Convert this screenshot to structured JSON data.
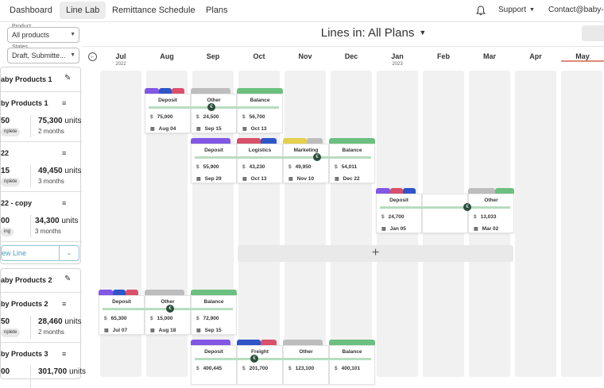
{
  "nav": {
    "tabs": [
      {
        "label": "Dashboard"
      },
      {
        "label": "Line Lab"
      },
      {
        "label": "Remittance Schedule"
      },
      {
        "label": "Plans"
      }
    ],
    "support": "Support",
    "contact": "Contact@baby-p"
  },
  "filters": {
    "product_label": "Product",
    "product_value": "All products",
    "states_label": "States",
    "states_value": "Draft, Submitte..."
  },
  "header": {
    "lines_title": "Lines in: All Plans"
  },
  "months": [
    {
      "name": "Jul",
      "year": "2022"
    },
    {
      "name": "Aug",
      "year": ""
    },
    {
      "name": "Sep",
      "year": ""
    },
    {
      "name": "Oct",
      "year": ""
    },
    {
      "name": "Nov",
      "year": ""
    },
    {
      "name": "Dec",
      "year": ""
    },
    {
      "name": "Jan",
      "year": "2023"
    },
    {
      "name": "Feb",
      "year": ""
    },
    {
      "name": "Mar",
      "year": ""
    },
    {
      "name": "Apr",
      "year": ""
    },
    {
      "name": "May",
      "year": ""
    }
  ],
  "sidebar": {
    "groups": [
      {
        "title": "aby Products 1",
        "lines": [
          {
            "title": "by Products 1",
            "num": "50",
            "units_value": "75,300",
            "units_word": "units",
            "months": "2 months",
            "badge": "nplete"
          },
          {
            "title": "22",
            "num": "15",
            "units_value": "49,450",
            "units_word": "units",
            "months": "3 months",
            "badge": "nplete"
          },
          {
            "title": "22 - copy",
            "num": "00",
            "units_value": "34,300",
            "units_word": "units",
            "months": "3 months",
            "badge": "ing"
          }
        ],
        "new_line": "ew Line"
      },
      {
        "title": "aby Products 2",
        "lines": [
          {
            "title": "by Products 2",
            "num": "50",
            "units_value": "28,460",
            "units_word": "units",
            "months": "2 months",
            "badge": "nplete"
          },
          {
            "title": "by Products 3",
            "num": "00",
            "units_value": "301,700",
            "units_word": "units"
          }
        ]
      }
    ]
  },
  "cards": {
    "row1": [
      {
        "label": "Deposit",
        "amount": "75,000",
        "date": "Aug 04"
      },
      {
        "label": "Other",
        "amount": "24,500",
        "date": "Sep 15"
      },
      {
        "label": "Balance",
        "amount": "56,700",
        "date": "Oct 13"
      }
    ],
    "row2": [
      {
        "label": "Deposit",
        "amount": "55,900",
        "date": "Sep 29"
      },
      {
        "label": "Logistics",
        "amount": "43,230",
        "date": "Oct 13"
      },
      {
        "label": "Marketing",
        "amount": "49,950",
        "date": "Nov 10"
      },
      {
        "label": "Balance",
        "amount": "54,011",
        "date": "Dec 22"
      }
    ],
    "row3": [
      {
        "label": "Deposit",
        "amount": "24,700",
        "date": "Jan 05"
      },
      {
        "label": "Other",
        "amount": "13,033",
        "date": "Mar 02"
      }
    ],
    "row4": [
      {
        "label": "Deposit",
        "amount": "65,300",
        "date": "Jul 07"
      },
      {
        "label": "Other",
        "amount": "15,000",
        "date": "Aug 18"
      },
      {
        "label": "Balance",
        "amount": "72,900",
        "date": "Sep 15"
      }
    ],
    "row5": [
      {
        "label": "Deposit",
        "amount": "400,445"
      },
      {
        "label": "Freight",
        "amount": "201,700"
      },
      {
        "label": "Other",
        "amount": "123,100"
      },
      {
        "label": "Balance",
        "amount": "400,101"
      }
    ],
    "currency": "$"
  },
  "colors": {
    "purple": "#8257e5",
    "blue": "#2f55c9",
    "pink": "#d9506b",
    "gray": "#bdbdbd",
    "green": "#6cc07f",
    "yellow": "#e5cf4d",
    "coin": "#2c4e3c"
  }
}
